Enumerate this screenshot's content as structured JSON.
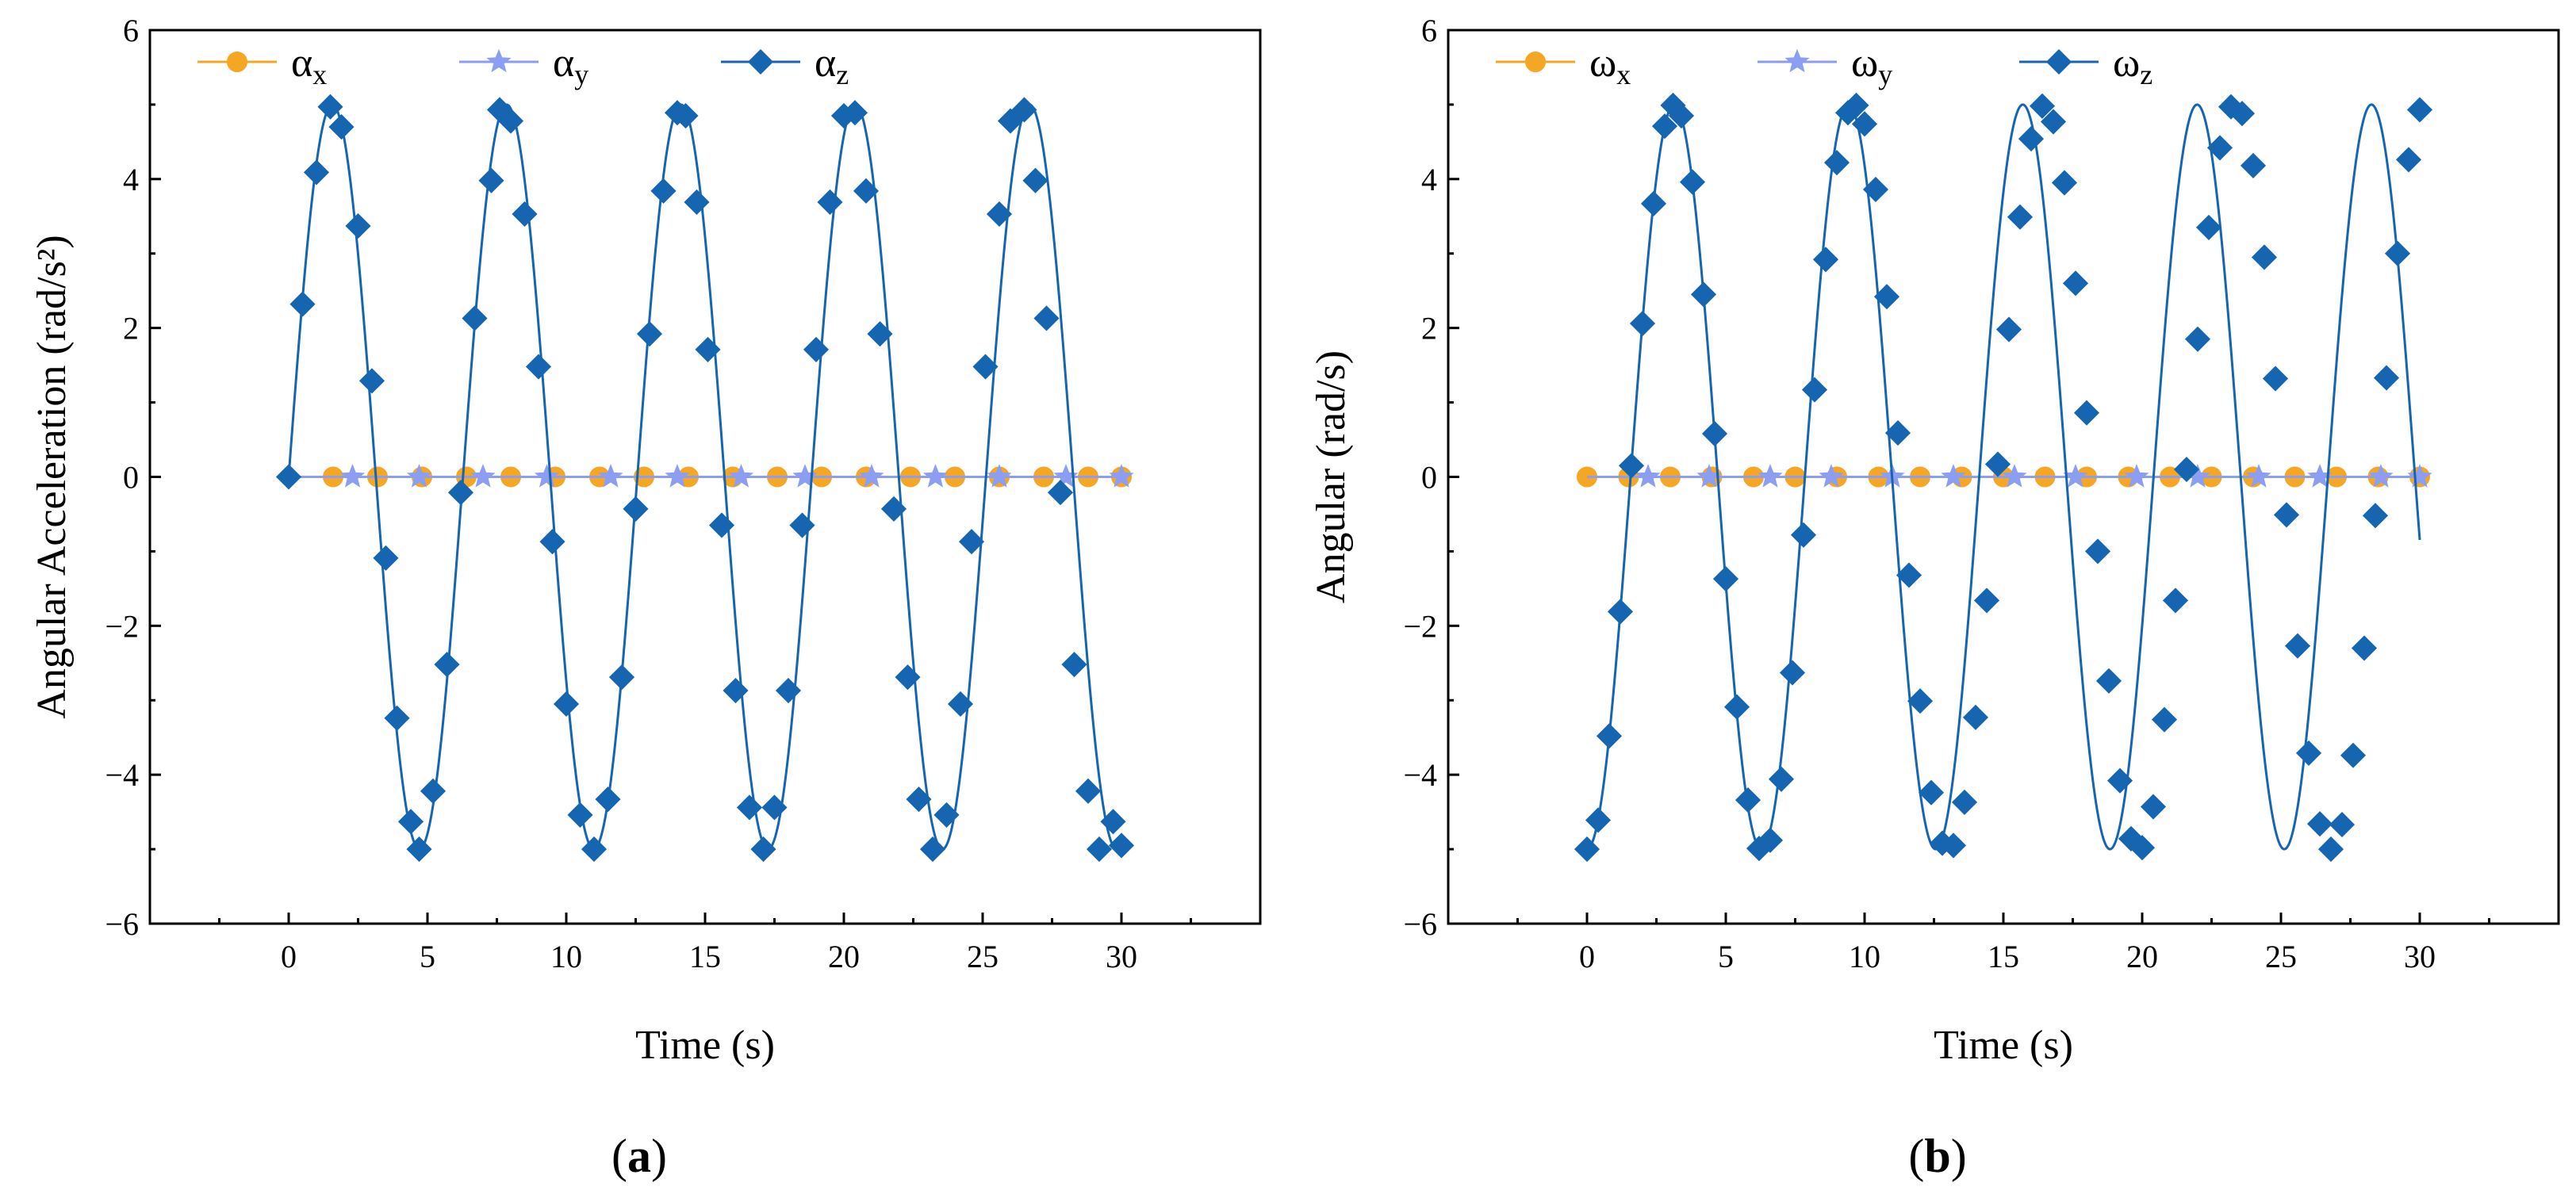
{
  "chart_data": [
    {
      "type": "line",
      "panel_label": "a",
      "xlabel": "Time (s)",
      "ylabel": "Angular Acceleration (rad/s²)",
      "xlim": [
        -5,
        35
      ],
      "ylim": [
        -6,
        6
      ],
      "xticks": [
        0,
        5,
        10,
        15,
        20,
        25,
        30
      ],
      "xtick_labels": [
        "0",
        "5",
        "10",
        "15",
        "20",
        "25",
        "30"
      ],
      "yticks": [
        -6,
        -4,
        -2,
        0,
        2,
        4,
        6
      ],
      "ytick_labels": [
        "−6",
        "−4",
        "−2",
        "0",
        "2",
        "4",
        "6"
      ],
      "legend_position": "top-left",
      "series": [
        {
          "name": "αx",
          "sym": "α",
          "sub": "x",
          "color": "#F5A623",
          "marker": "circle",
          "x": [
            1.6,
            3.2,
            4.8,
            6.4,
            8.0,
            9.6,
            11.2,
            12.8,
            14.4,
            16.0,
            17.6,
            19.2,
            20.8,
            22.4,
            24.0,
            25.6,
            27.2,
            28.8,
            30.0
          ],
          "y": [
            0,
            0,
            0,
            0,
            0,
            0,
            0,
            0,
            0,
            0,
            0,
            0,
            0,
            0,
            0,
            0,
            0,
            0,
            0
          ]
        },
        {
          "name": "αy",
          "sym": "α",
          "sub": "y",
          "color": "#8C9EF2",
          "marker": "star",
          "x": [
            2.3,
            4.7,
            7.0,
            9.3,
            11.6,
            14.0,
            16.3,
            18.6,
            21.0,
            23.3,
            25.6,
            28.0,
            30.0
          ],
          "y": [
            0,
            0,
            0,
            0,
            0,
            0,
            0,
            0,
            0,
            0,
            0,
            0,
            0
          ]
        },
        {
          "name": "αz",
          "sym": "α",
          "sub": "z",
          "color": "#1565B0",
          "marker": "diamond",
          "amplitude": 5,
          "period": 6.28,
          "phase_deg": 0,
          "start": 0,
          "end": 30,
          "x": [
            0,
            0.5,
            1.0,
            1.5,
            1.9,
            2.5,
            3.0,
            3.5,
            3.9,
            4.4,
            4.7,
            5.2,
            5.7,
            6.2,
            6.7,
            7.3,
            7.6,
            8.0,
            8.5,
            9.0,
            9.5,
            10.0,
            10.5,
            11.0,
            11.5,
            12.0,
            12.5,
            13.0,
            13.5,
            14.0,
            14.3,
            14.7,
            15.1,
            15.6,
            16.1,
            16.6,
            17.1,
            17.5,
            18.0,
            18.5,
            19.0,
            19.5,
            20.0,
            20.4,
            20.8,
            21.3,
            21.8,
            22.3,
            22.7,
            23.2,
            23.7,
            24.2,
            24.6,
            25.1,
            25.6,
            26.0,
            26.5,
            26.9,
            27.3,
            27.8,
            28.3,
            28.8,
            29.2,
            29.7,
            30.0
          ],
          "y": [
            0,
            2.32,
            4.09,
            4.97,
            4.7,
            3.37,
            1.29,
            -1.09,
            -3.24,
            -4.63,
            -5.0,
            -4.22,
            -2.52,
            -0.21,
            2.13,
            3.98,
            4.93,
            4.78,
            3.53,
            1.48,
            -0.87,
            -3.05,
            -4.54,
            -5.0,
            -4.33,
            -2.69,
            -0.43,
            1.92,
            3.84,
            4.89,
            4.85,
            3.69,
            1.71,
            -0.65,
            -2.87,
            -4.44,
            -5.0,
            -4.44,
            -2.87,
            -0.65,
            1.71,
            3.69,
            4.85,
            4.89,
            3.84,
            1.92,
            -0.43,
            -2.69,
            -4.33,
            -5.0,
            -4.54,
            -3.05,
            -0.87,
            1.48,
            3.53,
            4.78,
            4.93,
            3.98,
            2.13,
            -0.21,
            -2.52,
            -4.22,
            -5.0,
            -4.63,
            -4.95
          ]
        }
      ]
    },
    {
      "type": "line",
      "panel_label": "b",
      "xlabel": "Time (s)",
      "ylabel": "Angular (rad/s)",
      "xlim": [
        -5,
        35
      ],
      "ylim": [
        -6,
        6
      ],
      "xticks": [
        0,
        5,
        10,
        15,
        20,
        25,
        30
      ],
      "xtick_labels": [
        "0",
        "5",
        "10",
        "15",
        "20",
        "25",
        "30"
      ],
      "yticks": [
        -6,
        -4,
        -2,
        0,
        2,
        4,
        6
      ],
      "ytick_labels": [
        "−6",
        "−4",
        "−2",
        "0",
        "2",
        "4",
        "6"
      ],
      "legend_position": "top-left",
      "series": [
        {
          "name": "ωx",
          "sym": "ω",
          "sub": "x",
          "color": "#F5A623",
          "marker": "circle",
          "x": [
            0,
            1.5,
            3.0,
            4.5,
            6.0,
            7.5,
            9.0,
            10.5,
            12.0,
            13.5,
            15.0,
            16.5,
            18.0,
            19.5,
            21.0,
            22.5,
            24.0,
            25.5,
            27.0,
            28.5,
            30.0
          ],
          "y": [
            0,
            0,
            0,
            0,
            0,
            0,
            0,
            0,
            0,
            0,
            0,
            0,
            0,
            0,
            0,
            0,
            0,
            0,
            0,
            0,
            0
          ]
        },
        {
          "name": "ωy",
          "sym": "ω",
          "sub": "y",
          "color": "#8C9EF2",
          "marker": "star",
          "x": [
            2.2,
            4.4,
            6.6,
            8.8,
            11.0,
            13.2,
            15.4,
            17.6,
            19.8,
            22.0,
            24.2,
            26.4,
            28.6,
            30.0
          ],
          "y": [
            0,
            0,
            0,
            0,
            0,
            0,
            0,
            0,
            0,
            0,
            0,
            0,
            0,
            0
          ]
        },
        {
          "name": "ωz",
          "sym": "ω",
          "sub": "z",
          "color": "#1565B0",
          "marker": "diamond",
          "amplitude": 5,
          "period": 6.28,
          "phase_deg": -90,
          "start": 0,
          "end": 30,
          "x": [
            0,
            0.4,
            0.8,
            1.2,
            1.6,
            2.0,
            2.4,
            2.8,
            3.1,
            3.4,
            3.8,
            4.2,
            4.6,
            5.0,
            5.4,
            5.8,
            6.2,
            6.6,
            7.0,
            7.4,
            7.8,
            8.2,
            8.6,
            9.0,
            9.4,
            9.7,
            10.0,
            10.4,
            10.8,
            11.2,
            11.6,
            12.0,
            12.4,
            12.8,
            13.2,
            13.6,
            14.0,
            14.4,
            14.8,
            15.2,
            15.6,
            16.0,
            16.4,
            16.8,
            17.2,
            17.6,
            18.0,
            18.4,
            18.8,
            19.2,
            19.6,
            20.0,
            20.4,
            20.8,
            21.2,
            21.6,
            22.0,
            22.4,
            22.8,
            23.2,
            23.6,
            24.0,
            24.4,
            24.8,
            25.2,
            25.6,
            26.0,
            26.4,
            26.8,
            27.2,
            27.6,
            28.0,
            28.4,
            28.8,
            29.2,
            29.6,
            30.0
          ],
          "y": [
            -5.0,
            -4.61,
            -3.48,
            -1.81,
            0.15,
            2.06,
            3.67,
            4.71,
            4.99,
            4.85,
            3.96,
            2.45,
            0.58,
            -1.37,
            -3.09,
            -4.34,
            -4.99,
            -4.88,
            -4.06,
            -2.63,
            -0.78,
            1.17,
            2.92,
            4.22,
            4.89,
            4.99,
            4.74,
            3.86,
            2.42,
            0.59,
            -1.32,
            -3.01,
            -4.24,
            -4.92,
            -4.95,
            -4.37,
            -3.23,
            -1.66,
            0.17,
            1.98,
            3.49,
            4.54,
            4.98,
            4.77,
            3.95,
            2.6,
            0.86,
            -1.0,
            -2.74,
            -4.08,
            -4.86,
            -4.98,
            -4.43,
            -3.26,
            -1.66,
            0.1,
            1.85,
            3.35,
            4.42,
            4.97,
            4.88,
            4.18,
            2.95,
            1.32,
            -0.51,
            -2.27,
            -3.71,
            -4.66,
            -5.0,
            -4.67,
            -3.74,
            -2.3,
            -0.52,
            1.33,
            3.0,
            4.26,
            4.93
          ]
        }
      ]
    }
  ]
}
